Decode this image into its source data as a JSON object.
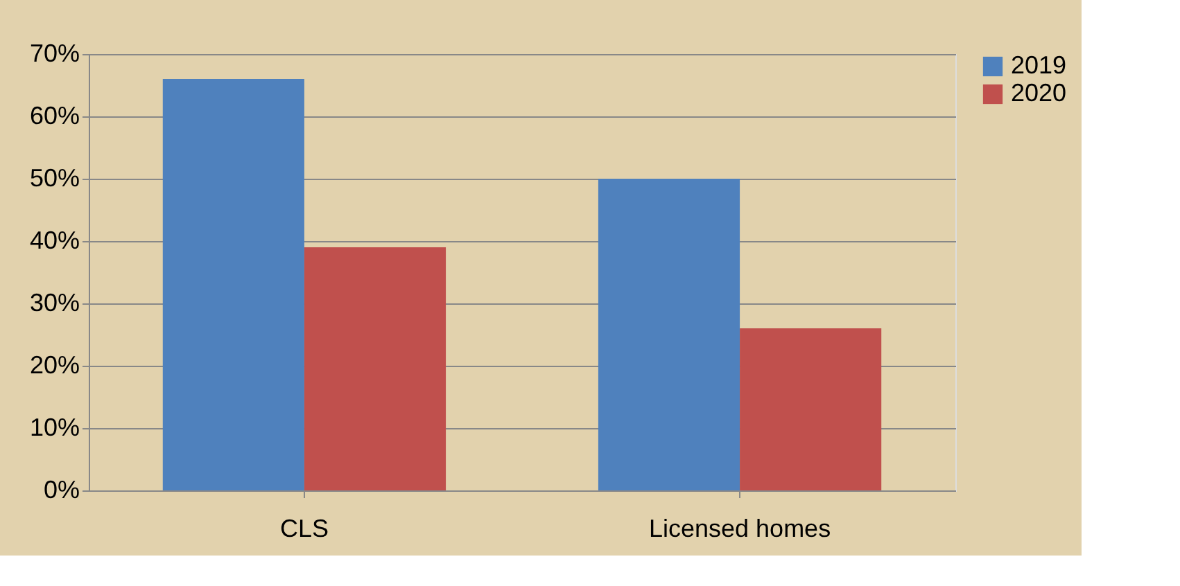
{
  "chart_data": {
    "type": "bar",
    "categories": [
      "CLS",
      "Licensed homes"
    ],
    "series": [
      {
        "name": "2019",
        "color": "#4f81bd",
        "values": [
          66,
          50
        ]
      },
      {
        "name": "2020",
        "color": "#c0504d",
        "values": [
          39,
          26
        ]
      }
    ],
    "ylim": [
      0,
      70
    ],
    "yticks": [
      {
        "value": 0,
        "label": "0%"
      },
      {
        "value": 10,
        "label": "10%"
      },
      {
        "value": 20,
        "label": "20%"
      },
      {
        "value": 30,
        "label": "30%"
      },
      {
        "value": 40,
        "label": "40%"
      },
      {
        "value": 50,
        "label": "50%"
      },
      {
        "value": 60,
        "label": "60%"
      },
      {
        "value": 70,
        "label": "70%"
      }
    ],
    "grid": "y",
    "legend": "right"
  }
}
